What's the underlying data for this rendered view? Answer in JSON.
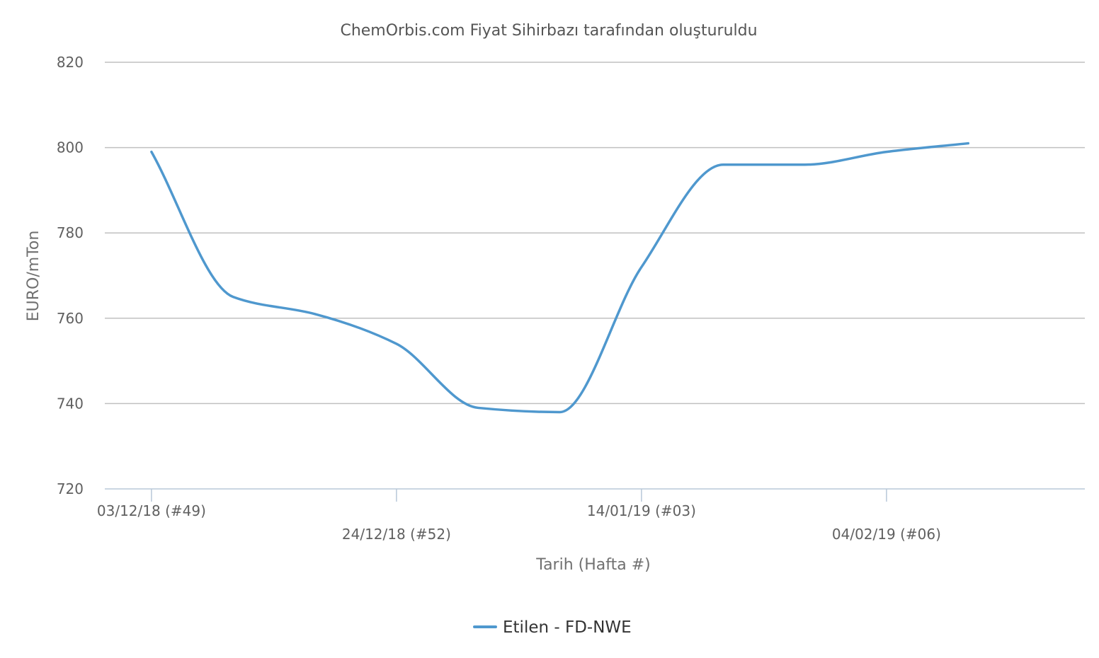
{
  "chart_data": {
    "type": "line",
    "title": "ChemOrbis.com Fiyat Sihirbazı tarafından oluşturuldu",
    "xlabel": "Tarih (Hafta #)",
    "ylabel": "EURO/mTon",
    "ylim": [
      720,
      820
    ],
    "y_ticks": [
      "720",
      "740",
      "760",
      "780",
      "800",
      "820"
    ],
    "x_ticks": [
      {
        "date": "2018-12-03",
        "label": "03/12/18 (#49)"
      },
      {
        "date": "2018-12-24",
        "label": "24/12/18 (#52)"
      },
      {
        "date": "2019-01-14",
        "label": "14/01/19 (#03)"
      },
      {
        "date": "2019-02-04",
        "label": "04/02/19 (#06)"
      }
    ],
    "xlim": [
      "2018-11-29",
      "2019-02-21"
    ],
    "grid": true,
    "legend_position": "bottom-center",
    "series": [
      {
        "name": "Etilen - FD-NWE",
        "color": "#4f98ce",
        "x": [
          "2018-12-03",
          "2018-12-10",
          "2018-12-17",
          "2018-12-24",
          "2018-12-31",
          "2019-01-07",
          "2019-01-14",
          "2019-01-21",
          "2019-01-28",
          "2019-02-04",
          "2019-02-11"
        ],
        "y": [
          799,
          765,
          761,
          754,
          739,
          738,
          772,
          796,
          796,
          799,
          801
        ]
      }
    ],
    "colors": {
      "grid": "#c0c0c0",
      "axis": "#b8c8d8",
      "text": "#606060"
    }
  }
}
